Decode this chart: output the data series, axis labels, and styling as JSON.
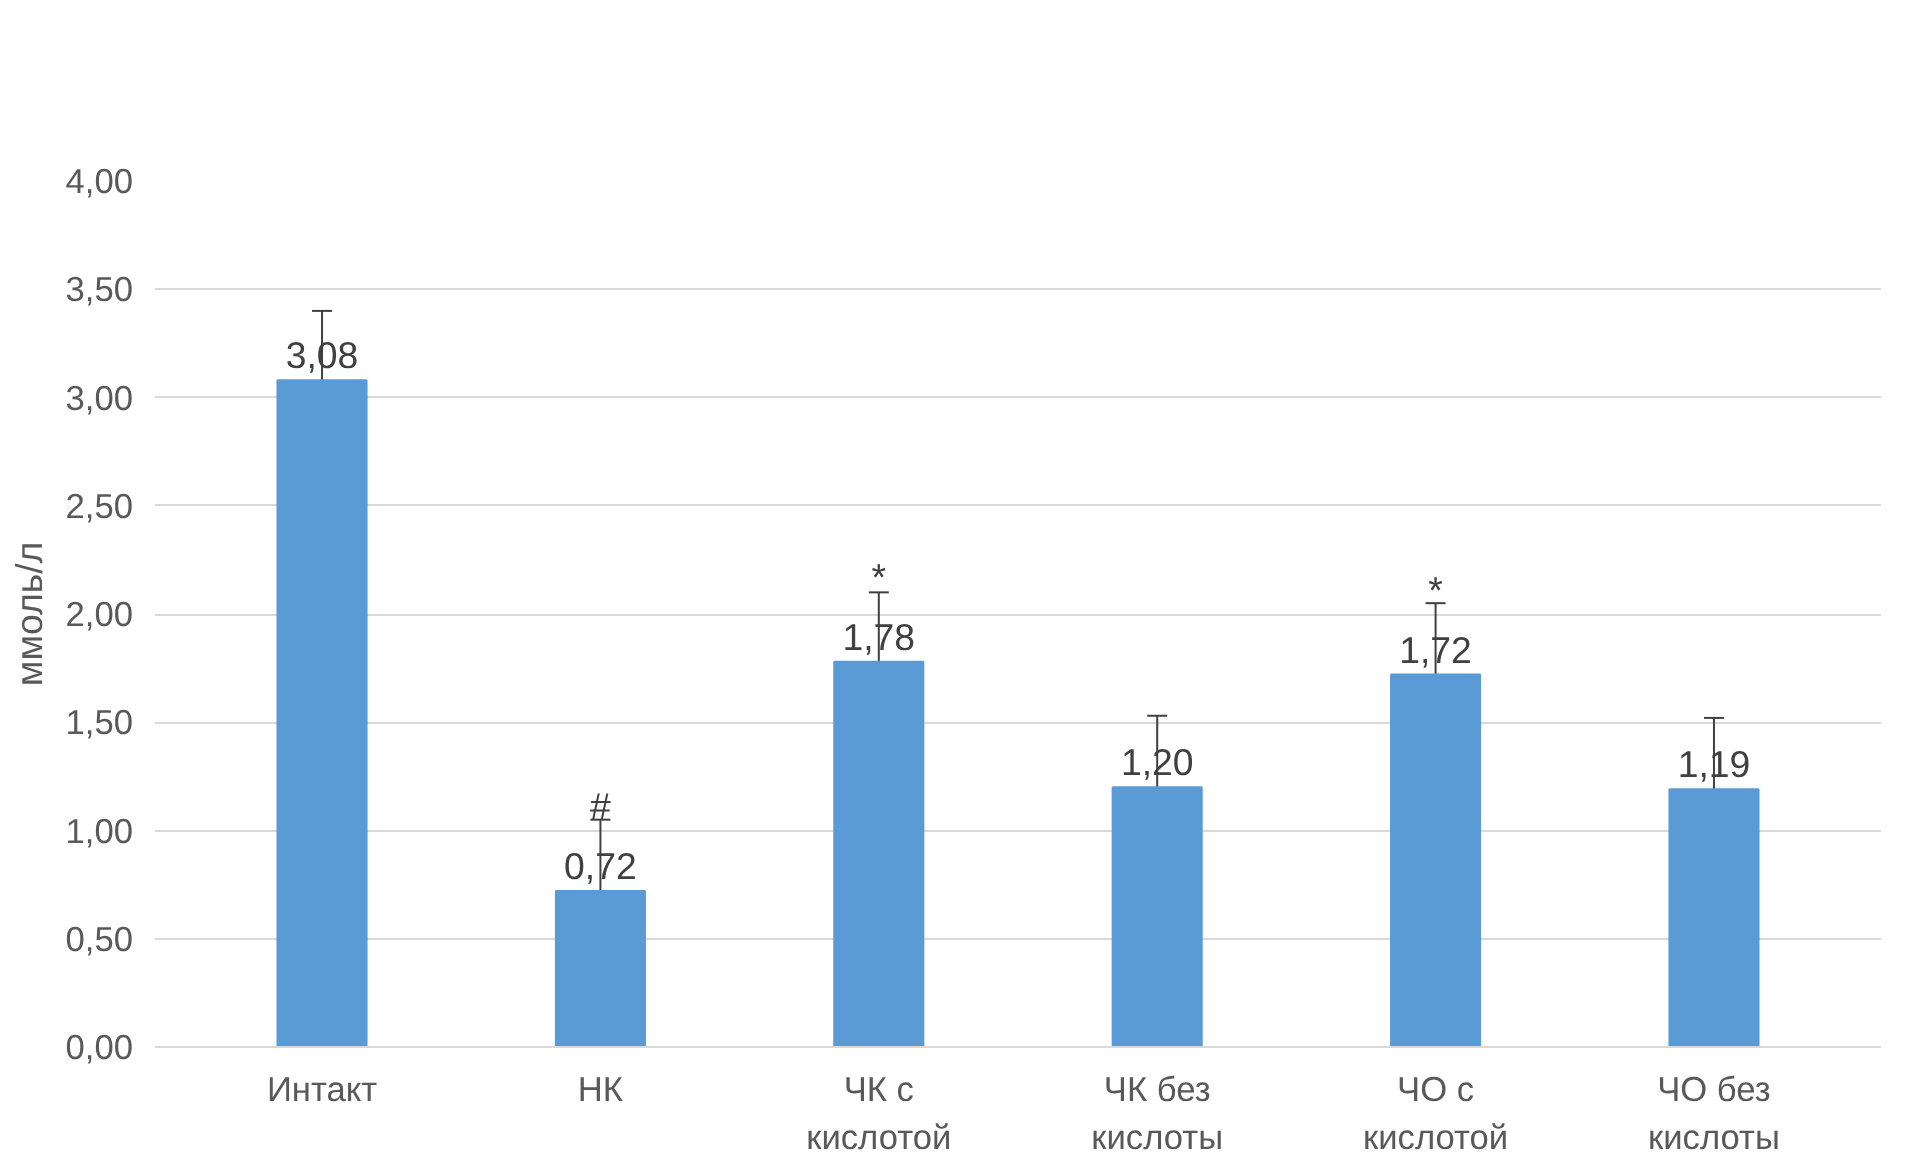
{
  "chart_data": {
    "type": "bar",
    "ylabel": "ммоль/л",
    "categories": [
      "Интакт",
      "НК",
      "ЧК с\nкислотой",
      "ЧК без\nкислоты",
      "ЧО с\nкислотой",
      "ЧО без\nкислоты"
    ],
    "values": [
      3.08,
      0.72,
      1.78,
      1.2,
      1.72,
      1.19
    ],
    "value_labels": [
      "3,08",
      "0,72",
      "1,78",
      "1,20",
      "1,72",
      "1,19"
    ],
    "errors": [
      0.32,
      0.33,
      0.32,
      0.33,
      0.33,
      0.33
    ],
    "color": "#5b9bd5",
    "ylim": [
      0,
      4
    ],
    "yticks": [
      {
        "value": 0,
        "label": "0,00"
      },
      {
        "value": 0.5,
        "label": "0,50"
      },
      {
        "value": 1,
        "label": "1,00"
      },
      {
        "value": 1.5,
        "label": "1,50"
      },
      {
        "value": 2,
        "label": "2,00"
      },
      {
        "value": 2.5,
        "label": "2,50"
      },
      {
        "value": 3,
        "label": "3,00"
      },
      {
        "value": 3.5,
        "label": "3,50"
      },
      {
        "value": 4,
        "label": "4,00"
      }
    ],
    "grid": "y",
    "annotations": [
      "#",
      "*",
      "*"
    ]
  }
}
